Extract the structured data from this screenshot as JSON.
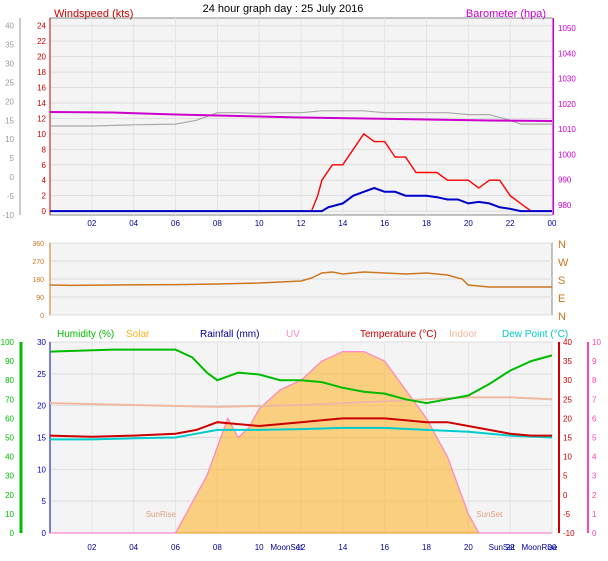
{
  "title": "24 hour graph day : 25 July 2016",
  "colors": {
    "windspeed": "#cc0000",
    "gust": "#ff0000",
    "avg": "#0000cc",
    "barometer": "#cc00cc",
    "gray": "#aaaaaa",
    "direction": "#cc7722",
    "humidity": "#00bb00",
    "solar": "#ffb020",
    "rainfall": "#000099",
    "uv": "#ff88cc",
    "temperature": "#cc0000",
    "indoor": "#f0b8a0",
    "dewpoint": "#00cccc",
    "green_axis": "#00bb00",
    "pink_axis": "#ff44aa",
    "blue_axis": "#0000cc"
  },
  "chart_data": [
    {
      "type": "line",
      "label_left": "Windspeed (kts)",
      "label_right": "Barometer (hpa)",
      "x_ticks": [
        "02",
        "04",
        "06",
        "08",
        "10",
        "12",
        "14",
        "16",
        "18",
        "20",
        "22",
        "00"
      ],
      "y_left_ticks": [
        0,
        2,
        4,
        6,
        8,
        10,
        12,
        14,
        16,
        18,
        20,
        22,
        24
      ],
      "y_left_range": [
        -0.5,
        25
      ],
      "y_outer_ticks": [
        -10,
        -5,
        0,
        5,
        10,
        15,
        20,
        25,
        30,
        35,
        40
      ],
      "y_outer_range": [
        -10,
        42
      ],
      "y_right_ticks": [
        980,
        990,
        1000,
        1010,
        1020,
        1030,
        1040,
        1050
      ],
      "y_right_range": [
        976,
        1054
      ],
      "wind_gust": [
        [
          0,
          0
        ],
        [
          12.5,
          0
        ],
        [
          12.8,
          2
        ],
        [
          13,
          4
        ],
        [
          13.5,
          6
        ],
        [
          14,
          6
        ],
        [
          14.5,
          8
        ],
        [
          15,
          10
        ],
        [
          15.5,
          9
        ],
        [
          16,
          9
        ],
        [
          16.5,
          7
        ],
        [
          17,
          7
        ],
        [
          17.5,
          5
        ],
        [
          18,
          5
        ],
        [
          18.5,
          5
        ],
        [
          19,
          4
        ],
        [
          19.5,
          4
        ],
        [
          20,
          4
        ],
        [
          20.5,
          3
        ],
        [
          21,
          4
        ],
        [
          21.5,
          4
        ],
        [
          22,
          2
        ],
        [
          22.5,
          1
        ],
        [
          23,
          0
        ],
        [
          24,
          0
        ]
      ],
      "wind_avg": [
        [
          0,
          0
        ],
        [
          13,
          0
        ],
        [
          13.3,
          0.5
        ],
        [
          14,
          1
        ],
        [
          14.5,
          2
        ],
        [
          15,
          2.5
        ],
        [
          15.5,
          3
        ],
        [
          16,
          2.5
        ],
        [
          16.5,
          2.5
        ],
        [
          17,
          2
        ],
        [
          17.5,
          2
        ],
        [
          18,
          2
        ],
        [
          18.5,
          1.8
        ],
        [
          19,
          1.5
        ],
        [
          19.5,
          1.5
        ],
        [
          20,
          1
        ],
        [
          20.5,
          1.2
        ],
        [
          21,
          1
        ],
        [
          21.5,
          0.5
        ],
        [
          22,
          0.3
        ],
        [
          22.5,
          0
        ],
        [
          24,
          0
        ]
      ],
      "barometer": [
        [
          0,
          1016.8
        ],
        [
          3,
          1016.6
        ],
        [
          6,
          1015.8
        ],
        [
          9,
          1015.2
        ],
        [
          12,
          1014.6
        ],
        [
          15,
          1014.2
        ],
        [
          18,
          1013.8
        ],
        [
          21,
          1013.4
        ],
        [
          24,
          1013.2
        ]
      ],
      "gray_line": [
        [
          0,
          13.5
        ],
        [
          2,
          13.5
        ],
        [
          4,
          13.8
        ],
        [
          6,
          14
        ],
        [
          7,
          15
        ],
        [
          8,
          17
        ],
        [
          9,
          17
        ],
        [
          10,
          16.8
        ],
        [
          11,
          17
        ],
        [
          12,
          17
        ],
        [
          13,
          17.5
        ],
        [
          14,
          17.5
        ],
        [
          15,
          17.5
        ],
        [
          16,
          17
        ],
        [
          17,
          17
        ],
        [
          18,
          17
        ],
        [
          19,
          17
        ],
        [
          20,
          16.5
        ],
        [
          21,
          16.5
        ],
        [
          22,
          15
        ],
        [
          22.5,
          14
        ],
        [
          24,
          14
        ]
      ]
    },
    {
      "type": "line",
      "label_right_ticks": [
        "N",
        "W",
        "S",
        "E",
        "N"
      ],
      "y_ticks": [
        0,
        90,
        180,
        270,
        360
      ],
      "y_range": [
        0,
        360
      ],
      "direction": [
        [
          0,
          150
        ],
        [
          1,
          148
        ],
        [
          3,
          150
        ],
        [
          6,
          152
        ],
        [
          8,
          155
        ],
        [
          10,
          160
        ],
        [
          11,
          165
        ],
        [
          12,
          170
        ],
        [
          12.5,
          185
        ],
        [
          13,
          210
        ],
        [
          13.5,
          215
        ],
        [
          14,
          205
        ],
        [
          15,
          215
        ],
        [
          16,
          210
        ],
        [
          17,
          205
        ],
        [
          18,
          210
        ],
        [
          19,
          200
        ],
        [
          19.7,
          180
        ],
        [
          20,
          150
        ],
        [
          21,
          140
        ],
        [
          22,
          140
        ],
        [
          23,
          140
        ],
        [
          24,
          140
        ]
      ]
    },
    {
      "type": "line",
      "legend": [
        "Humidity (%)",
        "Solar",
        "Rainfall (mm)",
        "UV",
        "Temperature (°C)",
        "Indoor",
        "Dew Point (°C)"
      ],
      "x_ticks": [
        "02",
        "04",
        "06",
        "08",
        "10",
        "12",
        "14",
        "16",
        "18",
        "20",
        "22",
        "00"
      ],
      "y_humidity_ticks": [
        0,
        10,
        20,
        30,
        40,
        50,
        60,
        70,
        80,
        90,
        100
      ],
      "y_rain_ticks": [
        0,
        5,
        10,
        15,
        20,
        25,
        30
      ],
      "y_temp_ticks": [
        -10,
        -5,
        0,
        5,
        10,
        15,
        20,
        25,
        30,
        35,
        40
      ],
      "y_temp_range": [
        -10,
        40
      ],
      "y_uv_ticks": [
        0,
        1,
        2,
        3,
        4,
        5,
        6,
        7,
        8,
        9,
        10
      ],
      "temperature": [
        [
          0,
          15.5
        ],
        [
          2,
          15.2
        ],
        [
          4,
          15.5
        ],
        [
          6,
          16
        ],
        [
          7,
          17
        ],
        [
          8,
          19
        ],
        [
          9,
          18.5
        ],
        [
          10,
          18
        ],
        [
          11,
          18.5
        ],
        [
          12,
          19
        ],
        [
          13,
          19.5
        ],
        [
          14,
          20
        ],
        [
          15,
          20
        ],
        [
          16,
          20
        ],
        [
          17,
          19.5
        ],
        [
          18,
          19
        ],
        [
          19,
          19
        ],
        [
          20,
          18
        ],
        [
          21,
          17
        ],
        [
          22,
          16
        ],
        [
          23,
          15.5
        ],
        [
          24,
          15.5
        ]
      ],
      "dewpoint": [
        [
          0,
          14.5
        ],
        [
          2,
          14.5
        ],
        [
          4,
          14.8
        ],
        [
          6,
          15
        ],
        [
          7,
          16
        ],
        [
          8,
          17
        ],
        [
          10,
          17
        ],
        [
          12,
          17.2
        ],
        [
          14,
          17.5
        ],
        [
          16,
          17.5
        ],
        [
          18,
          17
        ],
        [
          20,
          16.5
        ],
        [
          22,
          15.5
        ],
        [
          24,
          15
        ]
      ],
      "indoor": [
        [
          0,
          24
        ],
        [
          4,
          23.5
        ],
        [
          8,
          23
        ],
        [
          12,
          23.5
        ],
        [
          14,
          24
        ],
        [
          16,
          24.5
        ],
        [
          18,
          25
        ],
        [
          20,
          25.5
        ],
        [
          22,
          25.5
        ],
        [
          24,
          25
        ]
      ],
      "humidity": [
        [
          0,
          95
        ],
        [
          3,
          96
        ],
        [
          6,
          96
        ],
        [
          6.8,
          92
        ],
        [
          7.5,
          84
        ],
        [
          8,
          80
        ],
        [
          8.5,
          82
        ],
        [
          9,
          84
        ],
        [
          10,
          83
        ],
        [
          11,
          80
        ],
        [
          12,
          80
        ],
        [
          13,
          79
        ],
        [
          14,
          76
        ],
        [
          15,
          74
        ],
        [
          16,
          73
        ],
        [
          17,
          70
        ],
        [
          18,
          68
        ],
        [
          19,
          70
        ],
        [
          20,
          72
        ],
        [
          21,
          78
        ],
        [
          22,
          85
        ],
        [
          23,
          90
        ],
        [
          24,
          93
        ]
      ],
      "solar_uv": [
        [
          0,
          0
        ],
        [
          6,
          0
        ],
        [
          6.5,
          1
        ],
        [
          7,
          2
        ],
        [
          7.5,
          3
        ],
        [
          8,
          4.5
        ],
        [
          8.5,
          6
        ],
        [
          9,
          5
        ],
        [
          9.5,
          5.5
        ],
        [
          10,
          6.5
        ],
        [
          11,
          7.5
        ],
        [
          12,
          8
        ],
        [
          13,
          9
        ],
        [
          14,
          9.5
        ],
        [
          15,
          9.5
        ],
        [
          16,
          9
        ],
        [
          17,
          7.5
        ],
        [
          18,
          6
        ],
        [
          19,
          4
        ],
        [
          19.5,
          2.5
        ],
        [
          20,
          1
        ],
        [
          20.5,
          0
        ],
        [
          24,
          0
        ]
      ]
    }
  ],
  "annotations": {
    "sunrise": "SunRise",
    "sunset": "SunSet",
    "moonset": "MoonSet",
    "moonrise": "MoonRise"
  }
}
